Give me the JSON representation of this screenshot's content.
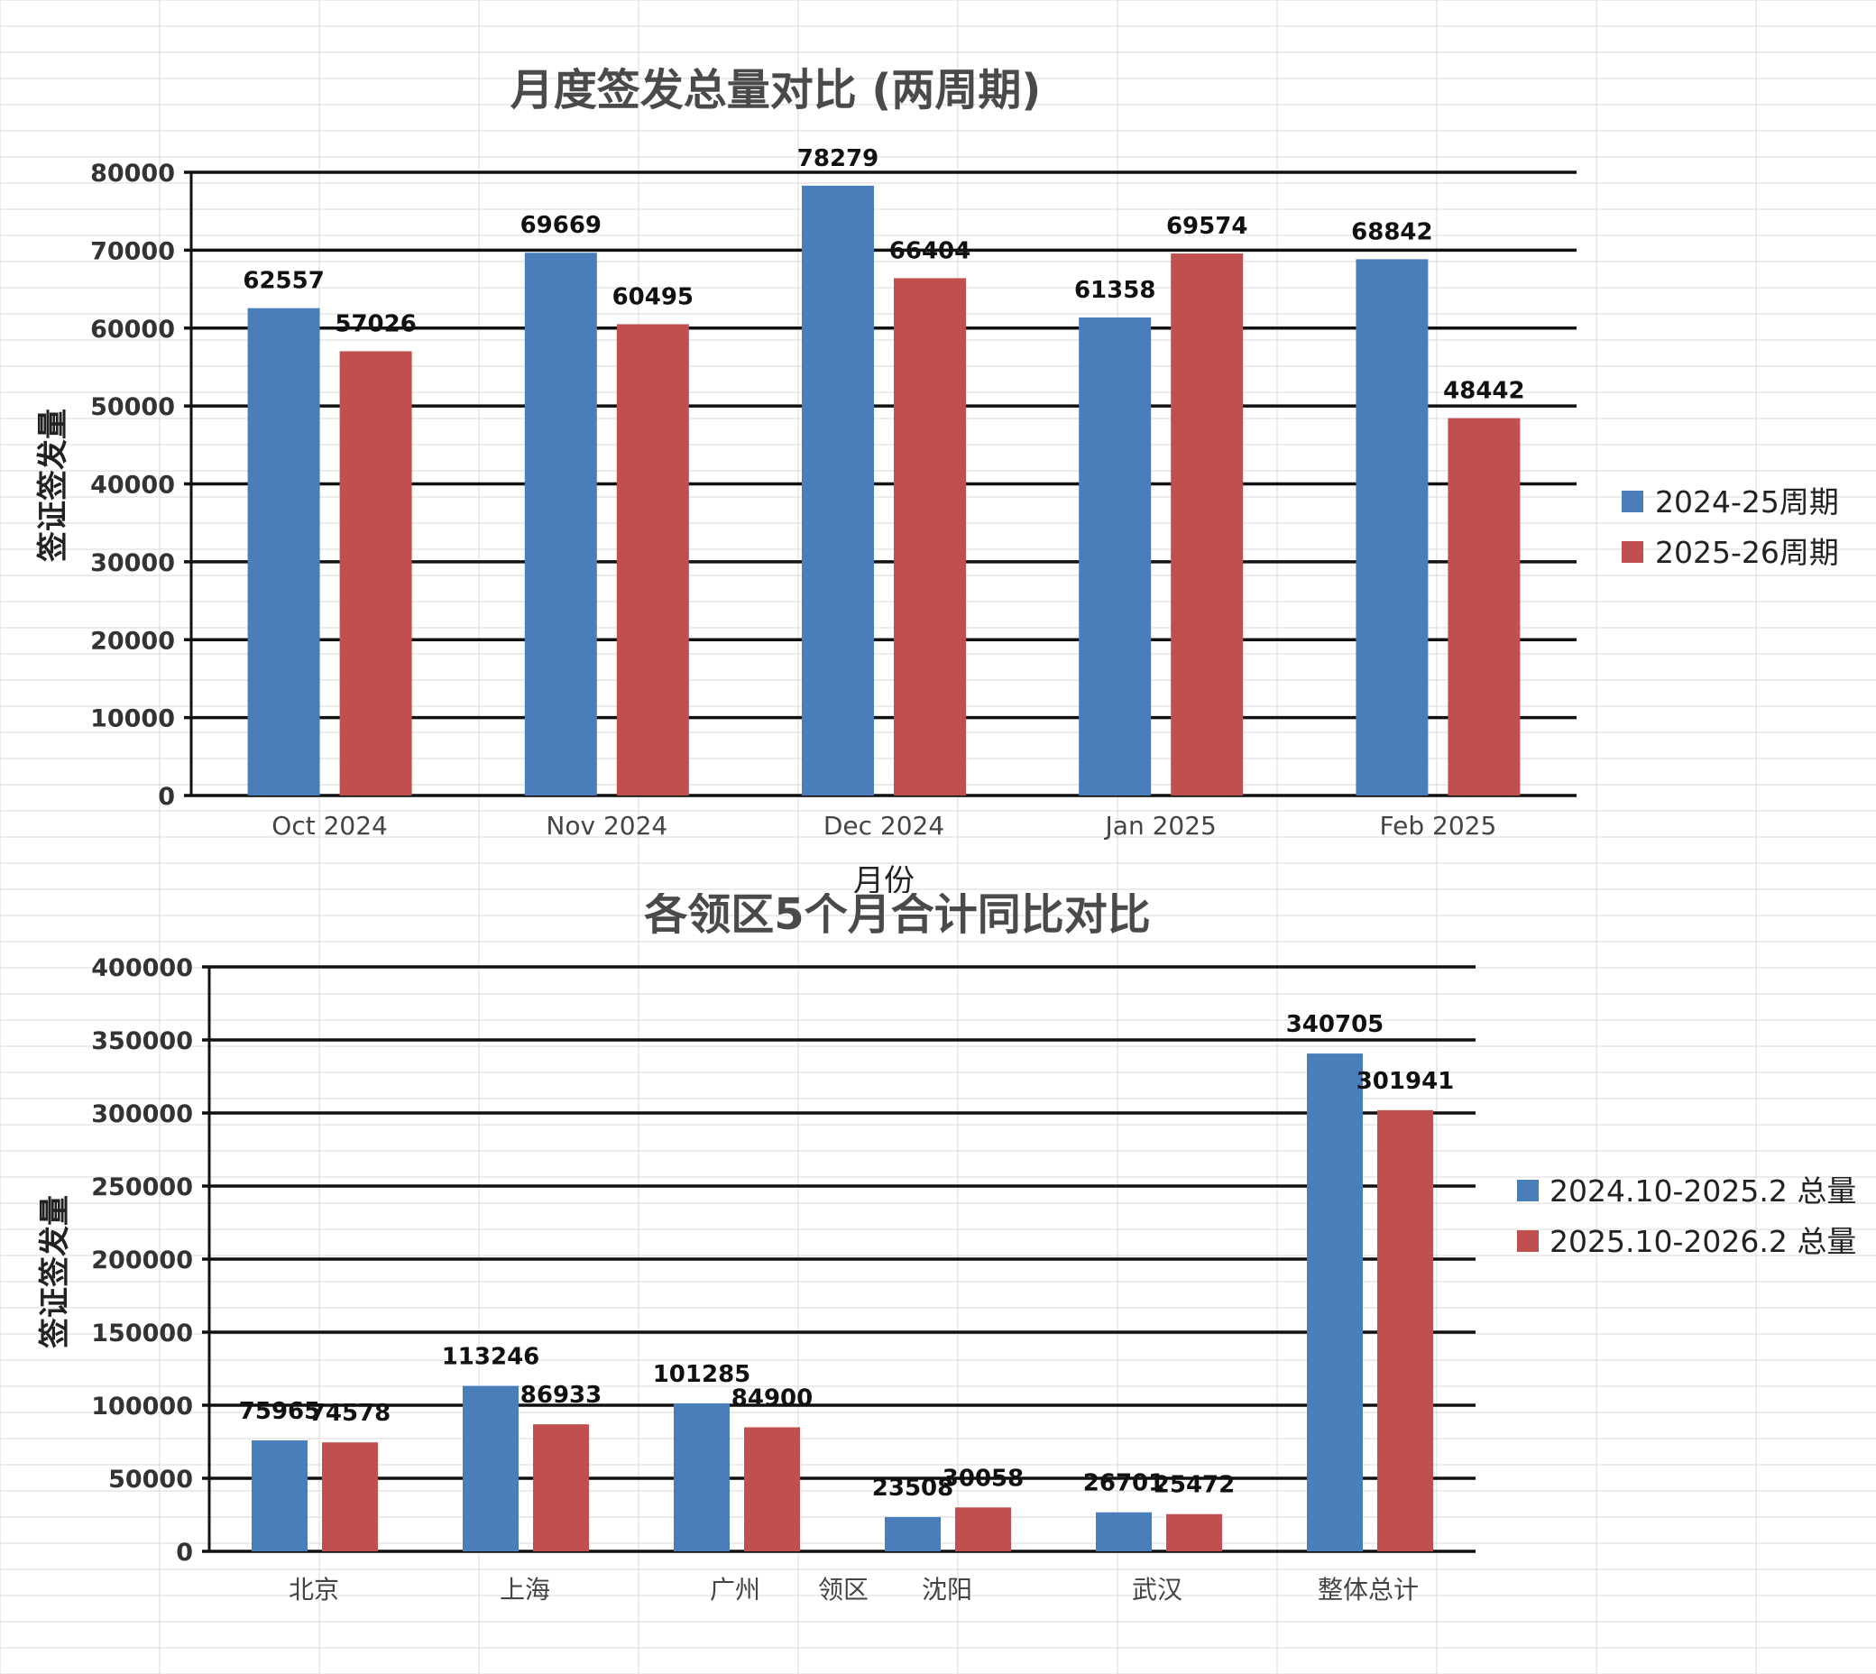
{
  "colors": {
    "series1": "#4a7ebb",
    "series2": "#c0504d",
    "grid": "#111111",
    "sheet_grid": "#d8d8d8"
  },
  "chart_data": [
    {
      "type": "bar",
      "title": "月度签发总量对比 (两周期)",
      "xlabel": "月份",
      "ylabel": "签证签发量",
      "categories": [
        "Oct 2024",
        "Nov 2024",
        "Dec 2024",
        "Jan 2025",
        "Feb 2025"
      ],
      "series": [
        {
          "name": "2024-25周期",
          "values": [
            62557,
            69669,
            78279,
            61358,
            68842
          ]
        },
        {
          "name": "2025-26周期",
          "values": [
            57026,
            60495,
            66404,
            69574,
            48442
          ]
        }
      ],
      "ylim": [
        0,
        80000
      ],
      "yticks": [
        "0",
        "10000",
        "20000",
        "30000",
        "40000",
        "50000",
        "60000",
        "70000",
        "80000"
      ],
      "grid": true,
      "legend": "right"
    },
    {
      "type": "bar",
      "title": "各领区5个月合计同比对比",
      "xlabel": "领区",
      "ylabel": "签证签发量",
      "categories": [
        "北京",
        "上海",
        "广州",
        "沈阳",
        "武汉",
        "整体总计"
      ],
      "series": [
        {
          "name": "2024.10-2025.2 总量",
          "values": [
            75965,
            113246,
            101285,
            23508,
            26701,
            340705
          ]
        },
        {
          "name": "2025.10-2026.2 总量",
          "values": [
            74578,
            86933,
            84900,
            30058,
            25472,
            301941
          ]
        }
      ],
      "ylim": [
        0,
        400000
      ],
      "yticks": [
        "0",
        "50000",
        "100000",
        "150000",
        "200000",
        "250000",
        "300000",
        "350000",
        "400000"
      ],
      "grid": true,
      "legend": "right"
    }
  ]
}
